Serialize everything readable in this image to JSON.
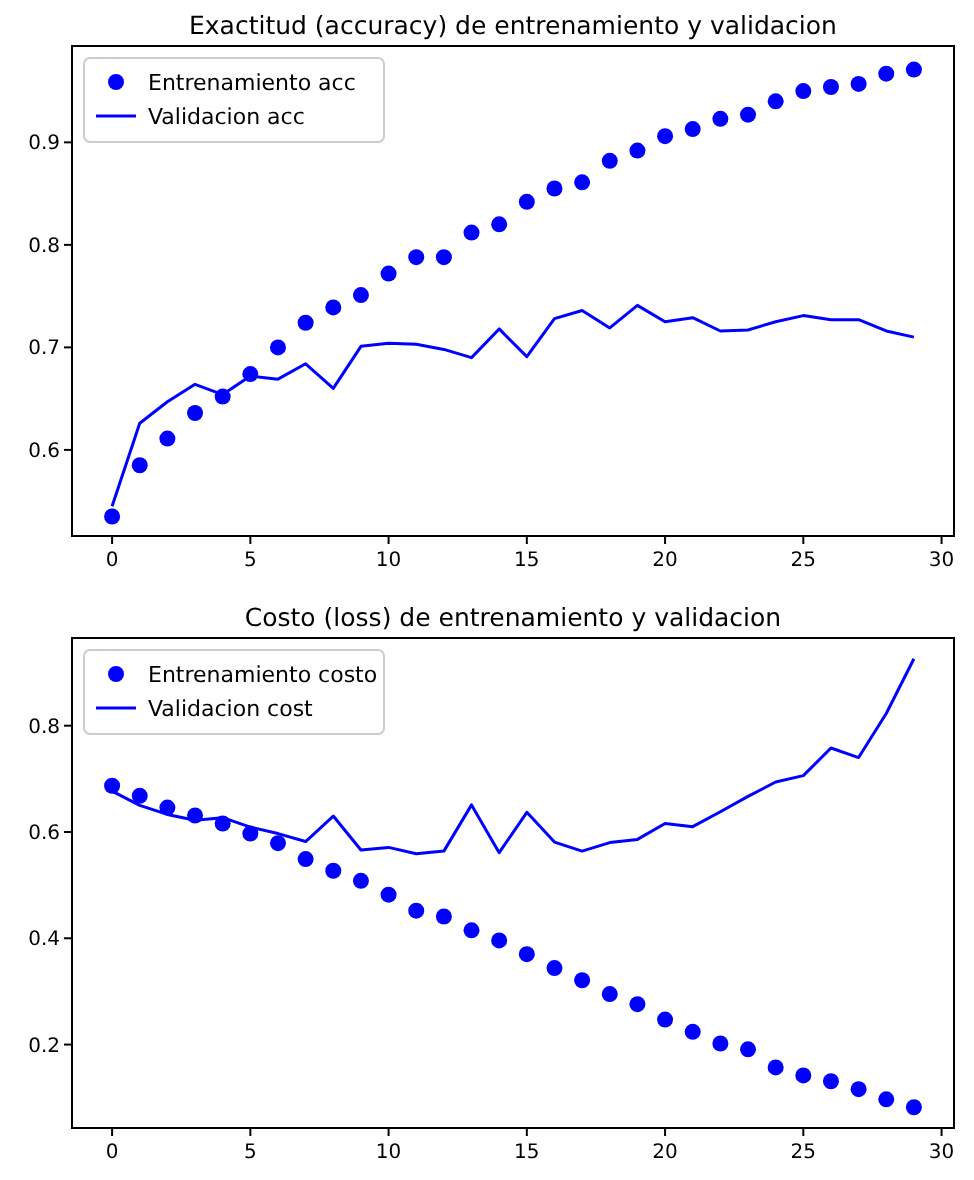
{
  "chart_data": [
    {
      "type": "scatter",
      "title": "Exactitud (accuracy) de entrenamiento y validacion",
      "x": [
        0,
        1,
        2,
        3,
        4,
        5,
        6,
        7,
        8,
        9,
        10,
        11,
        12,
        13,
        14,
        15,
        16,
        17,
        18,
        19,
        20,
        21,
        22,
        23,
        24,
        25,
        26,
        27,
        28,
        29
      ],
      "xlim": [
        -1.45,
        30.45
      ],
      "xticks": [
        0,
        5,
        10,
        15,
        20,
        25,
        30
      ],
      "ylim": [
        0.516,
        0.994
      ],
      "yticks": [
        0.6,
        0.7,
        0.8,
        0.9
      ],
      "legend": "top left",
      "series": [
        {
          "name": "Entrenamiento acc",
          "marker": "circle",
          "color": "#0000ff",
          "values": [
            0.535,
            0.585,
            0.611,
            0.636,
            0.652,
            0.674,
            0.7,
            0.724,
            0.739,
            0.751,
            0.772,
            0.788,
            0.788,
            0.812,
            0.82,
            0.842,
            0.855,
            0.861,
            0.882,
            0.892,
            0.906,
            0.913,
            0.923,
            0.927,
            0.94,
            0.95,
            0.954,
            0.957,
            0.967,
            0.971
          ]
        },
        {
          "name": "Validacion acc",
          "type": "line",
          "line_style": "solid",
          "color": "#0000ff",
          "values": [
            0.545,
            0.626,
            0.647,
            0.664,
            0.654,
            0.672,
            0.669,
            0.684,
            0.66,
            0.701,
            0.704,
            0.703,
            0.698,
            0.69,
            0.718,
            0.691,
            0.728,
            0.736,
            0.719,
            0.741,
            0.725,
            0.729,
            0.716,
            0.717,
            0.725,
            0.731,
            0.727,
            0.727,
            0.716,
            0.71
          ]
        }
      ]
    },
    {
      "type": "scatter",
      "title": "Costo (loss) de entrenamiento y validacion",
      "x": [
        0,
        1,
        2,
        3,
        4,
        5,
        6,
        7,
        8,
        9,
        10,
        11,
        12,
        13,
        14,
        15,
        16,
        17,
        18,
        19,
        20,
        21,
        22,
        23,
        24,
        25,
        26,
        27,
        28,
        29
      ],
      "xlim": [
        -1.45,
        30.45
      ],
      "xticks": [
        0,
        5,
        10,
        15,
        20,
        25,
        30
      ],
      "ylim": [
        0.043,
        0.965
      ],
      "yticks": [
        0.2,
        0.4,
        0.6,
        0.8
      ],
      "legend": "top left",
      "series": [
        {
          "name": "Entrenamiento costo",
          "marker": "circle",
          "color": "#0000ff",
          "values": [
            0.687,
            0.668,
            0.646,
            0.631,
            0.616,
            0.597,
            0.579,
            0.549,
            0.527,
            0.508,
            0.482,
            0.452,
            0.441,
            0.415,
            0.396,
            0.37,
            0.344,
            0.321,
            0.295,
            0.276,
            0.247,
            0.224,
            0.202,
            0.191,
            0.157,
            0.142,
            0.131,
            0.116,
            0.097,
            0.082
          ]
        },
        {
          "name": "Validacion cost",
          "type": "line",
          "line_style": "solid",
          "color": "#0000ff",
          "values": [
            0.677,
            0.65,
            0.633,
            0.622,
            0.627,
            0.609,
            0.597,
            0.582,
            0.63,
            0.566,
            0.571,
            0.559,
            0.564,
            0.651,
            0.561,
            0.637,
            0.581,
            0.564,
            0.58,
            0.586,
            0.616,
            0.61,
            0.638,
            0.667,
            0.694,
            0.706,
            0.758,
            0.74,
            0.823,
            0.926
          ]
        }
      ]
    }
  ]
}
